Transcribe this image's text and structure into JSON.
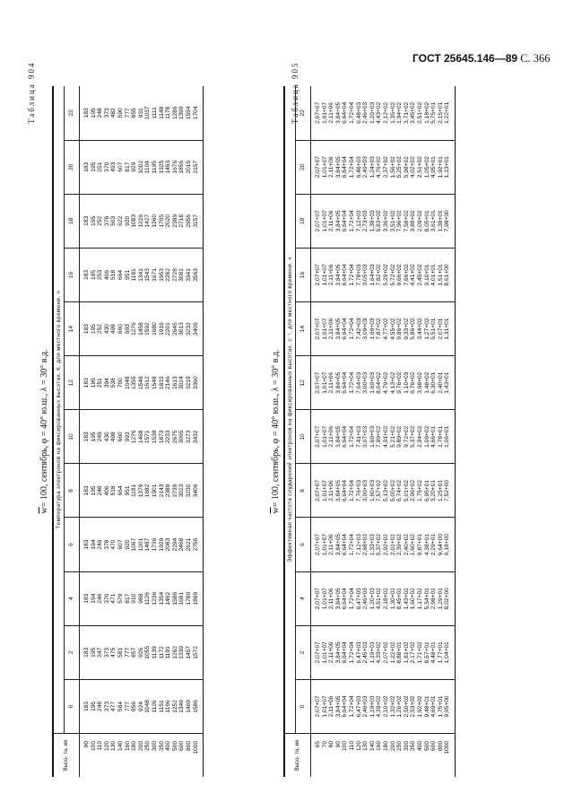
{
  "page_header": {
    "standard": "ГОСТ 25645.146—89",
    "page": "С. 366"
  },
  "tables": [
    {
      "label": "Таблица 904",
      "title_prefix": "w",
      "title": "= 100, сентябрь, φ = 40° ю.ш., λ = 30° в.д.",
      "caption": "Температура электронов на фиксированных высотах, К, для местного времени, ч",
      "height_header": "Высо- та, км",
      "hours": [
        "0",
        "2",
        "4",
        "6",
        "8",
        "10",
        "12",
        "14",
        "16",
        "18",
        "20",
        "22"
      ],
      "heights": [
        "90",
        "100",
        "110",
        "120",
        "130",
        "140",
        "160",
        "180",
        "200",
        "250",
        "300",
        "350",
        "400",
        "500",
        "600",
        "800",
        "1000"
      ],
      "columns": [
        [
          "183",
          "195",
          "248",
          "373",
          "477",
          "584",
          "777",
          "856",
          "924",
          "1048",
          "1126",
          "1151",
          "1166",
          "1252",
          "1346",
          "1469",
          "1586"
        ],
        [
          "183",
          "195",
          "247",
          "373",
          "475",
          "581",
          "777",
          "857",
          "926",
          "1055",
          "1139",
          "1172",
          "1191",
          "1262",
          "1339",
          "1457",
          "1572"
        ],
        [
          "183",
          "194",
          "246",
          "370",
          "471",
          "579",
          "817",
          "910",
          "988",
          "1126",
          "1236",
          "1354",
          "1462",
          "1586",
          "1681",
          "1789",
          "1889"
        ],
        [
          "183",
          "194",
          "246",
          "378",
          "470",
          "607",
          "920",
          "1067",
          "1201",
          "1487",
          "1736",
          "1929",
          "2083",
          "2294",
          "2468",
          "2621",
          "2756"
        ],
        [
          "183",
          "195",
          "248",
          "406",
          "518",
          "664",
          "951",
          "1181",
          "1379",
          "1682",
          "1901",
          "2143",
          "2389",
          "2739",
          "3023",
          "3230",
          "3406"
        ],
        [
          "183",
          "195",
          "249",
          "430",
          "498",
          "660",
          "993",
          "1276",
          "1468",
          "1571",
          "1538",
          "1873",
          "2233",
          "2675",
          "3065",
          "3273",
          "3432"
        ],
        [
          "183",
          "195",
          "251",
          "394",
          "538",
          "700",
          "1048",
          "1355",
          "1548",
          "1612",
          "1548",
          "1833",
          "2146",
          "2613",
          "3024",
          "3219",
          "3360"
        ],
        [
          "183",
          "195",
          "252",
          "430",
          "498",
          "660",
          "993",
          "1276",
          "1458",
          "1592",
          "1680",
          "1916",
          "2201",
          "2645",
          "3013",
          "3232",
          "3406"
        ],
        [
          "183",
          "195",
          "253",
          "406",
          "518",
          "664",
          "951",
          "1181",
          "1341",
          "1543",
          "1671",
          "1953",
          "2282",
          "2728",
          "3081",
          "3341",
          "3563"
        ],
        [
          "183",
          "195",
          "252",
          "378",
          "503",
          "622",
          "920",
          "1083",
          "1226",
          "1427",
          "1360",
          "1705",
          "2020",
          "2389",
          "2718",
          "2956",
          "3157"
        ],
        [
          "183",
          "195",
          "251",
          "370",
          "493",
          "607",
          "817",
          "929",
          "1002",
          "1104",
          "1195",
          "1325",
          "1463",
          "1676",
          "1856",
          "2015",
          "2157"
        ],
        [
          "183",
          "195",
          "248",
          "373",
          "482",
          "590",
          "777",
          "855",
          "931",
          "1037",
          "1111",
          "1148",
          "1178",
          "1286",
          "1399",
          "1554",
          "1704"
        ]
      ]
    },
    {
      "label": "Таблица 905",
      "title_prefix": "w",
      "title": "= 100, сентябрь, φ = 40° ю.ш., λ = 30° в.д.",
      "caption": "Эффективная частота соударений электронов на фиксированных высотах, с⁻¹, для местного времени, ч",
      "height_header": "Высо- та, км",
      "hours": [
        "0",
        "2",
        "4",
        "6",
        "8",
        "10",
        "12",
        "14",
        "16",
        "18",
        "20",
        "22"
      ],
      "heights": [
        "65",
        "70",
        "80",
        "90",
        "100",
        "110",
        "120",
        "130",
        "140",
        "160",
        "180",
        "200",
        "250",
        "300",
        "350",
        "400",
        "500",
        "600",
        "800",
        "1000"
      ],
      "columns": [
        [
          "2,07+07",
          "1,01+07",
          "2,11+06",
          "3,84+05",
          "6,64+04",
          "1,72+04",
          "6,47+03",
          "2,46+03",
          "1,19+03",
          "4,39+02",
          "2,10+02",
          "1,32+02",
          "1,26+02",
          "2,50+02",
          "2,53+02",
          "1,92+02",
          "9,48+01",
          "4,69+01",
          "1,75+01",
          "9,95+00"
        ],
        [
          "2,07+07",
          "1,01+07",
          "2,11+06",
          "3,84+05",
          "6,64+04",
          "1,72+04",
          "6,47+03",
          "2,45+03",
          "1,19+03",
          "4,33+02",
          "2,07+02",
          "1,22+02",
          "8,88+01",
          "1,81+02",
          "2,17+02",
          "1,71+02",
          "8,57+01",
          "4,48+01",
          "1,77+01",
          "1,04+01"
        ],
        [
          "2,07+07",
          "1,01+07",
          "2,11+06",
          "3,84+05",
          "6,64+04",
          "1,72+04",
          "6,47+03",
          "2,46+03",
          "1,20+03",
          "4,51+02",
          "2,18+02",
          "1,30+02",
          "8,45+01",
          "1,43+02",
          "1,60+02",
          "1,17+02",
          "5,54+01",
          "2,98+01",
          "1,29+01",
          "8,02+00"
        ],
        [
          "2,07+07",
          "1,01+07",
          "2,11+06",
          "3,84+05",
          "6,64+04",
          "1,72+04",
          "7,12+03",
          "2,68+03",
          "1,33+03",
          "5,37+02",
          "2,92+02",
          "2,01+02",
          "2,39+02",
          "2,40+02",
          "1,60+02",
          "9,87+01",
          "4,38+01",
          "2,29+01",
          "9,64+00",
          "6,18+00"
        ],
        [
          "2,07+07",
          "1,01+07",
          "2,11+06",
          "3,84+05",
          "6,64+04",
          "1,72+04",
          "7,76+03",
          "3,00+03",
          "1,60+03",
          "7,57+02",
          "5,13+02",
          "5,00+02",
          "6,74+02",
          "5,01+02",
          "2,96+02",
          "1,75+02",
          "6,95+01",
          "3,20+01",
          "1,25+01",
          "7,52+00"
        ],
        [
          "2,07+07",
          "1,01+07",
          "2,11+06",
          "3,84+05",
          "6,64+04",
          "1,72+04",
          "7,41+03",
          "3,07+03",
          "1,69+03",
          "7,99+02",
          "4,91+02",
          "5,21+02",
          "9,89+02",
          "9,72+02",
          "5,37+02",
          "2,94+02",
          "1,09+02",
          "4,66+01",
          "1,78+01",
          "1,06+01"
        ],
        [
          "2,07+07",
          "1,01+07",
          "2,11+06",
          "3,84+05",
          "6,64+04",
          "1,72+04",
          "7,04+03",
          "3,00+03",
          "1,69+03",
          "8,04+02",
          "4,79+02",
          "4,13+02",
          "9,76+02",
          "1,10+03",
          "6,76+02",
          "3,98+02",
          "1,48+02",
          "6,30+01",
          "2,40+01",
          "1,43+01"
        ],
        [
          "2,07+07",
          "1,01+07",
          "2,11+06",
          "3,84+05",
          "6,64+04",
          "1,72+04",
          "7,42+03",
          "3,09+03",
          "1,69+03",
          "7,87+02",
          "4,77+02",
          "4,55+02",
          "9,86+02",
          "9,33+02",
          "5,86+02",
          "3,44+02",
          "1,27+02",
          "5,51+01",
          "2,07+01",
          "1,31+01"
        ],
        [
          "2,07+07",
          "1,01+07",
          "2,11+06",
          "3,84+05",
          "6,64+04",
          "1,72+04",
          "7,78+03",
          "3,05+03",
          "1,64+03",
          "7,82+02",
          "5,29+02",
          "5,72+02",
          "9,66+02",
          "7,66+02",
          "4,41+02",
          "2,45+02",
          "9,10+01",
          "4,01+01",
          "1,51+01",
          "8,61+00"
        ],
        [
          "2,07+07",
          "1,01+07",
          "2,11+06",
          "3,84+05",
          "6,64+04",
          "1,72+04",
          "7,12+03",
          "2,73+03",
          "1,38+03",
          "5,83+02",
          "3,36+02",
          "3,51+02",
          "7,96+02",
          "7,58+02",
          "3,88+02",
          "2,09+02",
          "8,05+01",
          "3,61+01",
          "1,38+01",
          "7,98+00"
        ],
        [
          "2,07+07",
          "1,01+07",
          "2,11+06",
          "3,84+05",
          "6,64+04",
          "1,72+04",
          "6,48+03",
          "2,49+03",
          "1,24+03",
          "4,76+02",
          "2,37+02",
          "1,56+02",
          "5,25+02",
          "5,98+02",
          "4,02+02",
          "2,51+02",
          "1,05+02",
          "4,95+01",
          "1,92+01",
          "1,13+01"
        ],
        [
          "2,07+07",
          "1,01+07",
          "2,11+06",
          "3,84+05",
          "6,64+04",
          "1,72+04",
          "6,48+03",
          "2,46+03",
          "1,20+03",
          "4,43+02",
          "2,12+02",
          "1,35+02",
          "1,94+02",
          "3,71+02",
          "3,45+02",
          "2,51+02",
          "1,18+02",
          "5,75+01",
          "2,15+01",
          "1,22+01"
        ]
      ]
    }
  ]
}
